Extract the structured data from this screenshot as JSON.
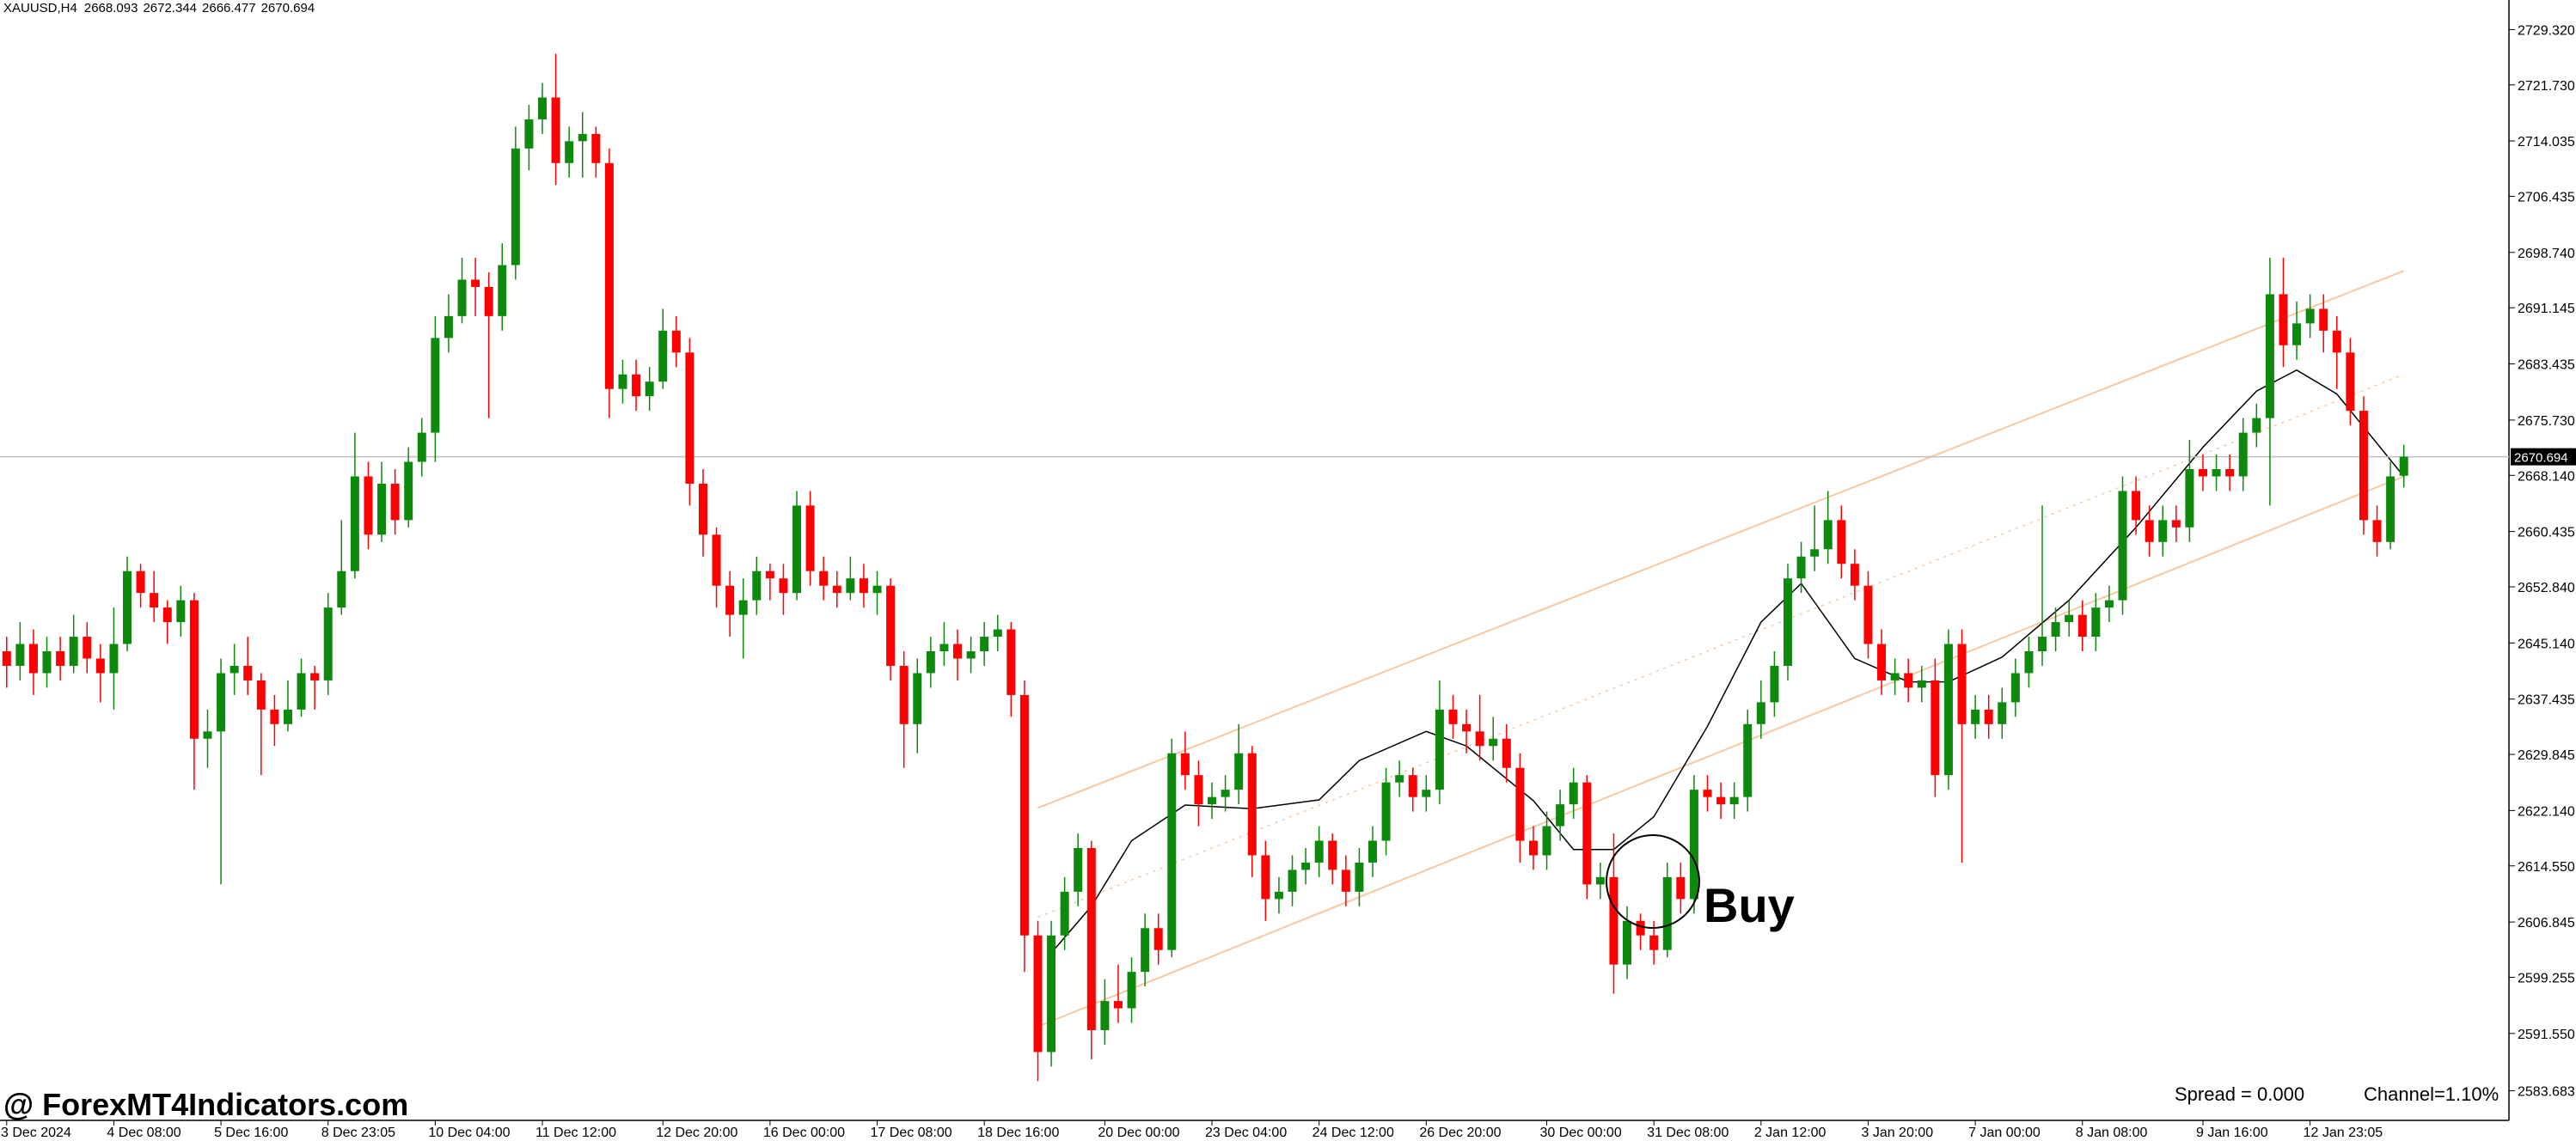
{
  "chart_data": {
    "type": "candlestick",
    "symbol": "XAUUSD,H4",
    "up_color": "#0d8a0d",
    "down_color": "#ff0000",
    "ylim": [
      2579.62,
      2733.38
    ],
    "xlim": [
      -0.5,
      186.85
    ],
    "yticks": [
      {
        "value": 2729.32,
        "label": "2729.320"
      },
      {
        "value": 2721.73,
        "label": "2721.730"
      },
      2714.035,
      2706.435,
      {
        "value": 2698.74,
        "label": "2698.740"
      },
      2691.145,
      2683.435,
      {
        "value": 2675.73,
        "label": "2675.730"
      },
      {
        "value": 2668.14,
        "label": "2668.140"
      },
      2660.435,
      {
        "value": 2652.84,
        "label": "2652.840"
      },
      {
        "value": 2645.14,
        "label": "2645.140"
      },
      2637.435,
      2629.845,
      {
        "value": 2622.14,
        "label": "2622.140"
      },
      {
        "value": 2614.55,
        "label": "2614.550"
      },
      2606.845,
      2599.255,
      {
        "value": 2591.55,
        "label": "2591.550"
      },
      2583.683
    ],
    "xticks": [
      {
        "value": 0,
        "label": "3 Dec 2024"
      },
      {
        "value": 8,
        "label": "4 Dec 08:00"
      },
      {
        "value": 16,
        "label": "5 Dec 16:00"
      },
      {
        "value": 24,
        "label": "8 Dec 23:05"
      },
      {
        "value": 32,
        "label": "10 Dec 04:00"
      },
      {
        "value": 40,
        "label": "11 Dec 12:00"
      },
      {
        "value": 49,
        "label": "12 Dec 20:00"
      },
      {
        "value": 57,
        "label": "16 Dec 00:00"
      },
      {
        "value": 65,
        "label": "17 Dec 08:00"
      },
      {
        "value": 73,
        "label": "18 Dec 16:00"
      },
      {
        "value": 82,
        "label": "20 Dec 00:00"
      },
      {
        "value": 90,
        "label": "23 Dec 04:00"
      },
      {
        "value": 98,
        "label": "24 Dec 12:00"
      },
      {
        "value": 106,
        "label": "26 Dec 20:00"
      },
      {
        "value": 115,
        "label": "30 Dec 00:00"
      },
      {
        "value": 123,
        "label": "31 Dec 08:00"
      },
      {
        "value": 131,
        "label": "2 Jan 12:00"
      },
      {
        "value": 139,
        "label": "3 Jan 20:00"
      },
      {
        "value": 147,
        "label": "7 Jan 00:00"
      },
      {
        "value": 155,
        "label": "8 Jan 08:00"
      },
      {
        "value": 164,
        "label": "9 Jan 16:00"
      },
      {
        "value": 172,
        "label": "12 Jan 23:05"
      }
    ],
    "candles": [
      [
        2644,
        2646,
        2639,
        2642
      ],
      [
        2642,
        2648,
        2640,
        2645
      ],
      [
        2645,
        2647,
        2638,
        2641
      ],
      [
        2641,
        2646,
        2639,
        2644
      ],
      [
        2644,
        2646,
        2640,
        2642
      ],
      [
        2642,
        2649,
        2641,
        2646
      ],
      [
        2646,
        2648,
        2641,
        2643
      ],
      [
        2643,
        2645,
        2637,
        2641
      ],
      [
        2641,
        2650,
        2636,
        2645
      ],
      [
        2645,
        2657,
        2644,
        2655
      ],
      [
        2655,
        2656,
        2650,
        2652
      ],
      [
        2652,
        2655,
        2648,
        2650
      ],
      [
        2650,
        2651,
        2645,
        2648
      ],
      [
        2648,
        2653,
        2646,
        2651
      ],
      [
        2651,
        2652,
        2625,
        2632
      ],
      [
        2632,
        2636,
        2628,
        2633
      ],
      [
        2633,
        2643,
        2612,
        2641
      ],
      [
        2641,
        2645,
        2638,
        2642
      ],
      [
        2642,
        2646,
        2638,
        2640
      ],
      [
        2640,
        2641,
        2627,
        2636
      ],
      [
        2636,
        2638,
        2631,
        2634
      ],
      [
        2634,
        2640,
        2633,
        2636
      ],
      [
        2636,
        2643,
        2635,
        2641
      ],
      [
        2641,
        2642,
        2636,
        2640
      ],
      [
        2640,
        2652,
        2638,
        2650
      ],
      [
        2650,
        2662,
        2649,
        2655
      ],
      [
        2655,
        2674,
        2654,
        2668
      ],
      [
        2668,
        2670,
        2658,
        2660
      ],
      [
        2660,
        2670,
        2659,
        2667
      ],
      [
        2667,
        2669,
        2660,
        2662
      ],
      [
        2662,
        2672,
        2661,
        2670
      ],
      [
        2670,
        2676,
        2668,
        2674
      ],
      [
        2674,
        2690,
        2670,
        2687
      ],
      [
        2687,
        2693,
        2685,
        2690
      ],
      [
        2690,
        2698,
        2689,
        2695
      ],
      [
        2695,
        2698,
        2690,
        2694
      ],
      [
        2694,
        2696,
        2676,
        2690
      ],
      [
        2690,
        2700,
        2688,
        2697
      ],
      [
        2697,
        2716,
        2695,
        2713
      ],
      [
        2713,
        2719,
        2710,
        2717
      ],
      [
        2717,
        2722,
        2715,
        2720
      ],
      [
        2720,
        2726,
        2708,
        2711
      ],
      [
        2711,
        2716,
        2709,
        2714
      ],
      [
        2714,
        2718,
        2709,
        2715
      ],
      [
        2715,
        2716,
        2709,
        2711
      ],
      [
        2711,
        2713,
        2676,
        2680
      ],
      [
        2680,
        2684,
        2678,
        2682
      ],
      [
        2682,
        2684,
        2677,
        2679
      ],
      [
        2679,
        2683,
        2677,
        2681
      ],
      [
        2681,
        2691,
        2680,
        2688
      ],
      [
        2688,
        2690,
        2683,
        2685
      ],
      [
        2685,
        2687,
        2664,
        2667
      ],
      [
        2667,
        2669,
        2657,
        2660
      ],
      [
        2660,
        2661,
        2650,
        2653
      ],
      [
        2653,
        2655,
        2646,
        2649
      ],
      [
        2649,
        2654,
        2643,
        2651
      ],
      [
        2651,
        2657,
        2649,
        2655
      ],
      [
        2655,
        2656,
        2651,
        2654
      ],
      [
        2654,
        2656,
        2649,
        2652
      ],
      [
        2652,
        2666,
        2651,
        2664
      ],
      [
        2664,
        2666,
        2653,
        2655
      ],
      [
        2655,
        2657,
        2651,
        2653
      ],
      [
        2653,
        2655,
        2650,
        2652
      ],
      [
        2652,
        2657,
        2651,
        2654
      ],
      [
        2654,
        2656,
        2650,
        2652
      ],
      [
        2652,
        2655,
        2649,
        2653
      ],
      [
        2653,
        2654,
        2640,
        2642
      ],
      [
        2642,
        2644,
        2628,
        2634
      ],
      [
        2634,
        2643,
        2630,
        2641
      ],
      [
        2641,
        2646,
        2639,
        2644
      ],
      [
        2644,
        2648,
        2642,
        2645
      ],
      [
        2645,
        2647,
        2640,
        2643
      ],
      [
        2643,
        2646,
        2641,
        2644
      ],
      [
        2644,
        2648,
        2642,
        2646
      ],
      [
        2646,
        2649,
        2644,
        2647
      ],
      [
        2647,
        2648,
        2635,
        2638
      ],
      [
        2638,
        2640,
        2600,
        2605
      ],
      [
        2605,
        2607,
        2585,
        2589
      ],
      [
        2589,
        2607,
        2587,
        2605
      ],
      [
        2605,
        2613,
        2603,
        2611
      ],
      [
        2611,
        2619,
        2609,
        2617
      ],
      [
        2617,
        2618,
        2588,
        2592
      ],
      [
        2592,
        2599,
        2590,
        2596
      ],
      [
        2596,
        2601,
        2593,
        2595
      ],
      [
        2595,
        2602,
        2593,
        2600
      ],
      [
        2600,
        2608,
        2598,
        2606
      ],
      [
        2606,
        2608,
        2601,
        2603
      ],
      [
        2603,
        2632,
        2602,
        2630
      ],
      [
        2630,
        2633,
        2625,
        2627
      ],
      [
        2627,
        2629,
        2620,
        2623
      ],
      [
        2623,
        2626,
        2621,
        2624
      ],
      [
        2624,
        2627,
        2622,
        2625
      ],
      [
        2625,
        2634,
        2623,
        2630
      ],
      [
        2630,
        2631,
        2613,
        2616
      ],
      [
        2616,
        2618,
        2607,
        2610
      ],
      [
        2610,
        2613,
        2608,
        2611
      ],
      [
        2611,
        2616,
        2609,
        2614
      ],
      [
        2614,
        2617,
        2612,
        2615
      ],
      [
        2615,
        2620,
        2613,
        2618
      ],
      [
        2618,
        2619,
        2612,
        2614
      ],
      [
        2614,
        2616,
        2609,
        2611
      ],
      [
        2611,
        2617,
        2609,
        2615
      ],
      [
        2615,
        2620,
        2613,
        2618
      ],
      [
        2618,
        2628,
        2616,
        2626
      ],
      [
        2626,
        2629,
        2624,
        2627
      ],
      [
        2627,
        2628,
        2622,
        2624
      ],
      [
        2624,
        2627,
        2622,
        2625
      ],
      [
        2625,
        2640,
        2623,
        2636
      ],
      [
        2636,
        2638,
        2632,
        2634
      ],
      [
        2634,
        2636,
        2630,
        2633
      ],
      [
        2633,
        2638,
        2629,
        2631
      ],
      [
        2631,
        2635,
        2629,
        2632
      ],
      [
        2632,
        2634,
        2626,
        2628
      ],
      [
        2628,
        2630,
        2615,
        2618
      ],
      [
        2618,
        2620,
        2614,
        2616
      ],
      [
        2616,
        2622,
        2614,
        2620
      ],
      [
        2620,
        2625,
        2618,
        2623
      ],
      [
        2623,
        2628,
        2621,
        2626
      ],
      [
        2626,
        2627,
        2610,
        2612
      ],
      [
        2612,
        2615,
        2610,
        2613
      ],
      [
        2613,
        2619,
        2597,
        2601
      ],
      [
        2601,
        2609,
        2599,
        2607
      ],
      [
        2607,
        2608,
        2603,
        2605
      ],
      [
        2605,
        2607,
        2601,
        2603
      ],
      [
        2603,
        2615,
        2602,
        2613
      ],
      [
        2613,
        2615,
        2608,
        2610
      ],
      [
        2610,
        2627,
        2608,
        2625
      ],
      [
        2625,
        2627,
        2622,
        2624
      ],
      [
        2624,
        2626,
        2621,
        2623
      ],
      [
        2623,
        2626,
        2621,
        2624
      ],
      [
        2624,
        2636,
        2622,
        2634
      ],
      [
        2634,
        2640,
        2632,
        2637
      ],
      [
        2637,
        2644,
        2635,
        2642
      ],
      [
        2642,
        2656,
        2640,
        2654
      ],
      [
        2654,
        2659,
        2652,
        2657
      ],
      [
        2657,
        2664,
        2655,
        2658
      ],
      [
        2658,
        2666,
        2656,
        2662
      ],
      [
        2662,
        2664,
        2654,
        2656
      ],
      [
        2656,
        2658,
        2651,
        2653
      ],
      [
        2653,
        2655,
        2643,
        2645
      ],
      [
        2645,
        2647,
        2638,
        2640
      ],
      [
        2640,
        2643,
        2638,
        2641
      ],
      [
        2641,
        2643,
        2637,
        2639
      ],
      [
        2639,
        2642,
        2637,
        2640
      ],
      [
        2640,
        2643,
        2624,
        2627
      ],
      [
        2627,
        2647,
        2625,
        2645
      ],
      [
        2645,
        2647,
        2615,
        2634
      ],
      [
        2634,
        2638,
        2632,
        2636
      ],
      [
        2636,
        2638,
        2632,
        2634
      ],
      [
        2634,
        2639,
        2632,
        2637
      ],
      [
        2637,
        2643,
        2635,
        2641
      ],
      [
        2641,
        2646,
        2639,
        2644
      ],
      [
        2644,
        2664,
        2642,
        2646
      ],
      [
        2646,
        2650,
        2644,
        2648
      ],
      [
        2648,
        2651,
        2646,
        2649
      ],
      [
        2649,
        2651,
        2644,
        2646
      ],
      [
        2646,
        2652,
        2644,
        2650
      ],
      [
        2650,
        2653,
        2648,
        2651
      ],
      [
        2651,
        2668,
        2649,
        2666
      ],
      [
        2666,
        2668,
        2660,
        2662
      ],
      [
        2662,
        2664,
        2657,
        2659
      ],
      [
        2659,
        2664,
        2657,
        2662
      ],
      [
        2662,
        2664,
        2659,
        2661
      ],
      [
        2661,
        2673,
        2659,
        2669
      ],
      [
        2669,
        2671,
        2666,
        2668
      ],
      [
        2668,
        2671,
        2666,
        2669
      ],
      [
        2669,
        2671,
        2666,
        2668
      ],
      [
        2668,
        2676,
        2666,
        2674
      ],
      [
        2674,
        2678,
        2672,
        2676
      ],
      [
        2676,
        2698,
        2664,
        2693
      ],
      [
        2693,
        2698,
        2683,
        2686
      ],
      [
        2686,
        2692,
        2684,
        2689
      ],
      [
        2689,
        2693,
        2687,
        2691
      ],
      [
        2691,
        2693,
        2685,
        2688
      ],
      [
        2688,
        2690,
        2680,
        2685
      ],
      [
        2685,
        2687,
        2675,
        2677
      ],
      [
        2677,
        2679,
        2660,
        2662
      ],
      [
        2662,
        2664,
        2657,
        2659
      ],
      [
        2659,
        2670,
        2658,
        2668
      ],
      [
        2668.093,
        2672.344,
        2666.477,
        2670.694
      ]
    ],
    "ma": {
      "color": "#000000",
      "x": [
        78,
        81,
        84,
        88,
        93,
        98,
        101,
        106,
        109,
        114,
        117,
        120,
        123,
        127,
        131,
        134,
        138,
        142,
        145,
        149,
        154,
        159,
        164,
        168,
        171,
        174,
        179
      ],
      "values": [
        2602.6,
        2609,
        2618,
        2622.9,
        2622.4,
        2623.6,
        2629,
        2633,
        2631,
        2623.5,
        2616.8,
        2616.8,
        2621.3,
        2633.7,
        2648,
        2653.3,
        2643,
        2639.8,
        2639.8,
        2643.2,
        2651,
        2661,
        2672,
        2679.7,
        2682.6,
        2679.3,
        2668
      ]
    },
    "channel": {
      "color": "#f9c8a0",
      "x": [
        77,
        179
      ],
      "upper": [
        2622.5,
        2696.2
      ],
      "middle": [
        2607.5,
        2682
      ],
      "lower": [
        2592.5,
        2668
      ]
    },
    "annotation": "Buy",
    "watermark": "@ ForexMT4Indicators.com",
    "spread": "Spread = 0.000",
    "channel_label": "Channel=1.10%"
  }
}
